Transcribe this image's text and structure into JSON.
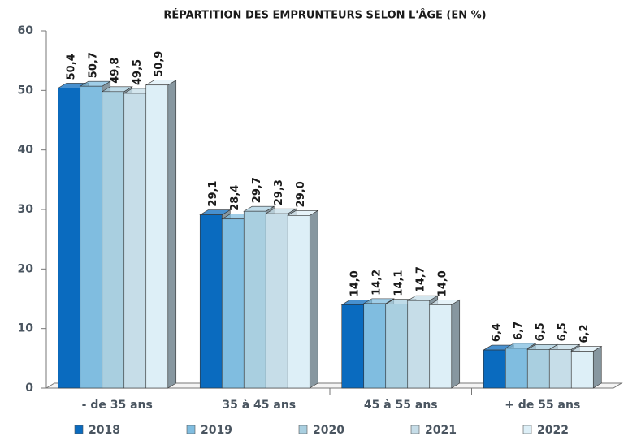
{
  "chart_data": {
    "type": "bar3d",
    "title": "RÉPARTITION DES EMPRUNTEURS SELON L'ÂGE (EN %)",
    "categories": [
      "- de 35 ans",
      "35 à 45 ans",
      "45 à 55 ans",
      "+ de 55 ans"
    ],
    "series": [
      {
        "name": "2018",
        "color": "#0a6bbf",
        "values": [
          50.4,
          29.1,
          14.0,
          6.4
        ],
        "value_labels": [
          "50,4",
          "29,1",
          "14,0",
          "6,4"
        ]
      },
      {
        "name": "2019",
        "color": "#80bde0",
        "values": [
          50.7,
          28.4,
          14.2,
          6.7
        ],
        "value_labels": [
          "50,7",
          "28,4",
          "14,2",
          "6,7"
        ]
      },
      {
        "name": "2020",
        "color": "#a9cfe0",
        "values": [
          49.8,
          29.7,
          14.1,
          6.5
        ],
        "value_labels": [
          "49,8",
          "29,7",
          "14,1",
          "6,5"
        ]
      },
      {
        "name": "2021",
        "color": "#c6dde8",
        "values": [
          49.5,
          29.3,
          14.7,
          6.5
        ],
        "value_labels": [
          "49,5",
          "29,3",
          "14,7",
          "6,5"
        ]
      },
      {
        "name": "2022",
        "color": "#ddeff7",
        "values": [
          50.9,
          29.0,
          14.0,
          6.2
        ],
        "value_labels": [
          "50,9",
          "29,0",
          "14,0",
          "6,2"
        ]
      }
    ],
    "ylim": [
      0,
      60
    ],
    "yticks": [
      0,
      10,
      20,
      30,
      40,
      50,
      60
    ],
    "grid": false,
    "legend": "bottom"
  }
}
